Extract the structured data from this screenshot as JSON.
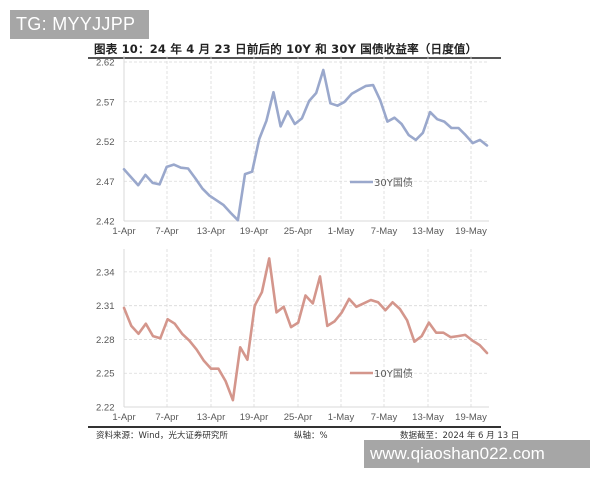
{
  "watermarks": {
    "top": "TG: MYYJJPP",
    "bottom": "www.qiaoshan022.com"
  },
  "title": "图表 10：24 年 4 月 23 日前后的 10Y 和 30Y 国债收益率（日度值）",
  "footer": {
    "source": "资料来源：Wind，光大证券研究所",
    "unit": "纵轴：%",
    "date": "数据截至：2024 年 6 月 13 日"
  },
  "colors": {
    "series_30y": "#9aa8cc",
    "series_10y": "#d4968c",
    "grid": "#d9d9d9",
    "axis": "#d9d9d9"
  },
  "chart_data": [
    {
      "type": "line",
      "title": "30Y国债",
      "xlabel": "",
      "ylabel": "%",
      "ylim": [
        2.42,
        2.62
      ],
      "yticks": [
        "2.42",
        "2.47",
        "2.52",
        "2.57",
        "2.62"
      ],
      "xticks": [
        "1-Apr",
        "7-Apr",
        "13-Apr",
        "19-Apr",
        "25-Apr",
        "1-May",
        "7-May",
        "13-May",
        "19-May"
      ],
      "grid": true,
      "legend_position": "inside-lower-right",
      "series": [
        {
          "name": "30Y国债",
          "values": [
            2.485,
            2.475,
            2.465,
            2.478,
            2.468,
            2.466,
            2.488,
            2.491,
            2.487,
            2.486,
            2.474,
            2.461,
            2.452,
            2.446,
            2.44,
            2.43,
            2.421,
            2.479,
            2.482,
            2.523,
            2.546,
            2.582,
            2.539,
            2.558,
            2.542,
            2.549,
            2.571,
            2.581,
            2.61,
            2.568,
            2.565,
            2.57,
            2.58,
            2.585,
            2.59,
            2.591,
            2.572,
            2.545,
            2.55,
            2.542,
            2.528,
            2.522,
            2.531,
            2.557,
            2.548,
            2.545,
            2.537,
            2.537,
            2.528,
            2.518,
            2.522,
            2.515
          ]
        }
      ]
    },
    {
      "type": "line",
      "title": "10Y国债",
      "xlabel": "",
      "ylabel": "%",
      "ylim": [
        2.22,
        2.355
      ],
      "yticks": [
        "2.22",
        "2.25",
        "2.28",
        "2.31",
        "2.34"
      ],
      "xticks": [
        "1-Apr",
        "7-Apr",
        "13-Apr",
        "19-Apr",
        "25-Apr",
        "1-May",
        "7-May",
        "13-May",
        "19-May"
      ],
      "grid": true,
      "legend_position": "inside-lower-right",
      "series": [
        {
          "name": "10Y国债",
          "values": [
            2.308,
            2.292,
            2.285,
            2.294,
            2.283,
            2.281,
            2.298,
            2.294,
            2.285,
            2.279,
            2.271,
            2.261,
            2.254,
            2.254,
            2.243,
            2.226,
            2.273,
            2.262,
            2.31,
            2.322,
            2.352,
            2.304,
            2.309,
            2.291,
            2.295,
            2.319,
            2.312,
            2.336,
            2.292,
            2.296,
            2.304,
            2.316,
            2.309,
            2.312,
            2.315,
            2.313,
            2.306,
            2.313,
            2.307,
            2.297,
            2.278,
            2.283,
            2.295,
            2.286,
            2.286,
            2.282,
            2.283,
            2.284,
            2.279,
            2.275,
            2.268
          ]
        }
      ]
    }
  ]
}
